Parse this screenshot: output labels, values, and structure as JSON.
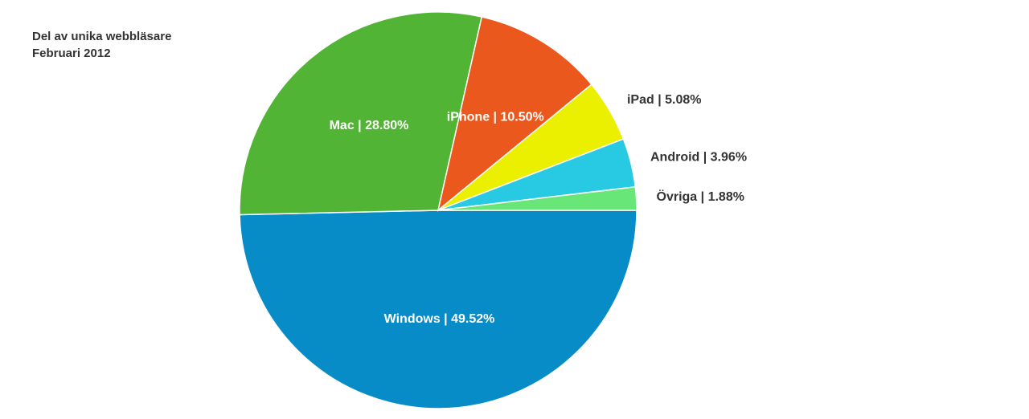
{
  "chart_data": {
    "type": "pie",
    "title": "Del av unika webbläsare",
    "subtitle": "Februari 2012",
    "values": [
      49.52,
      28.8,
      10.5,
      5.08,
      3.96,
      1.88
    ],
    "value_labels": [
      "Windows | 49.52%",
      "Mac | 28.80%",
      "iPhone | 10.50%",
      "iPad | 5.08%",
      "Android | 3.96%",
      "Övriga | 1.88%"
    ],
    "colors": [
      "#078cc7",
      "#52b434",
      "#eb581d",
      "#eaf000",
      "#27c9e3",
      "#69e678"
    ]
  }
}
